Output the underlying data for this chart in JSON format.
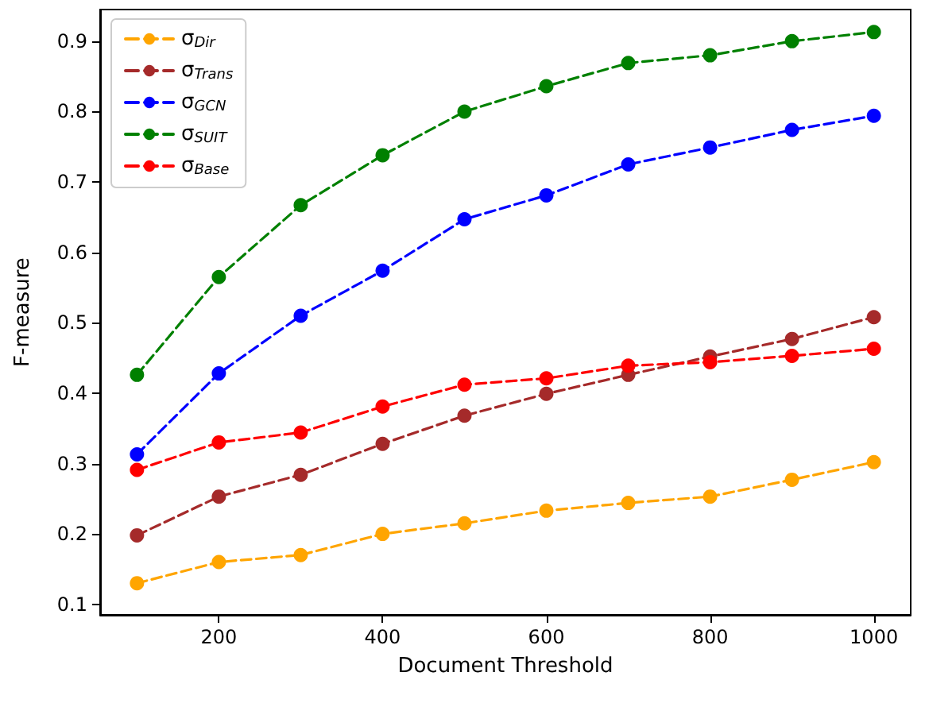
{
  "chart_data": {
    "type": "line",
    "xlabel": "Document Threshold",
    "ylabel": "F-measure",
    "x": [
      100,
      200,
      300,
      400,
      500,
      600,
      700,
      800,
      900,
      1000
    ],
    "series": [
      {
        "name": "σ$_{Dir}$",
        "color": "#ffa500",
        "values": [
          0.13,
          0.16,
          0.17,
          0.2,
          0.215,
          0.233,
          0.244,
          0.253,
          0.277,
          0.302
        ]
      },
      {
        "name": "σ$_{Trans}$",
        "color": "#a52a2a",
        "values": [
          0.198,
          0.253,
          0.284,
          0.328,
          0.368,
          0.399,
          0.426,
          0.452,
          0.477,
          0.508
        ]
      },
      {
        "name": "σ$_{GCN}$",
        "color": "#0000ff",
        "values": [
          0.313,
          0.428,
          0.51,
          0.574,
          0.647,
          0.681,
          0.725,
          0.749,
          0.774,
          0.794
        ]
      },
      {
        "name": "σ$_{SUIT}$",
        "color": "#008000",
        "values": [
          0.426,
          0.565,
          0.667,
          0.738,
          0.8,
          0.836,
          0.869,
          0.88,
          0.9,
          0.913
        ]
      },
      {
        "name": "σ$_{Base}$",
        "color": "#ff0000",
        "values": [
          0.291,
          0.33,
          0.344,
          0.381,
          0.412,
          0.421,
          0.439,
          0.444,
          0.453,
          0.463
        ]
      }
    ],
    "xlim": [
      55,
      1045
    ],
    "xticks": [
      200,
      400,
      600,
      800,
      1000
    ],
    "ylim": [
      0.085,
      0.945
    ],
    "yticks": [
      0.1,
      0.2,
      0.3,
      0.4,
      0.5,
      0.6,
      0.7,
      0.8,
      0.9
    ],
    "grid": false,
    "legend": "top left",
    "marker": "circle",
    "line_style": "dashed"
  }
}
